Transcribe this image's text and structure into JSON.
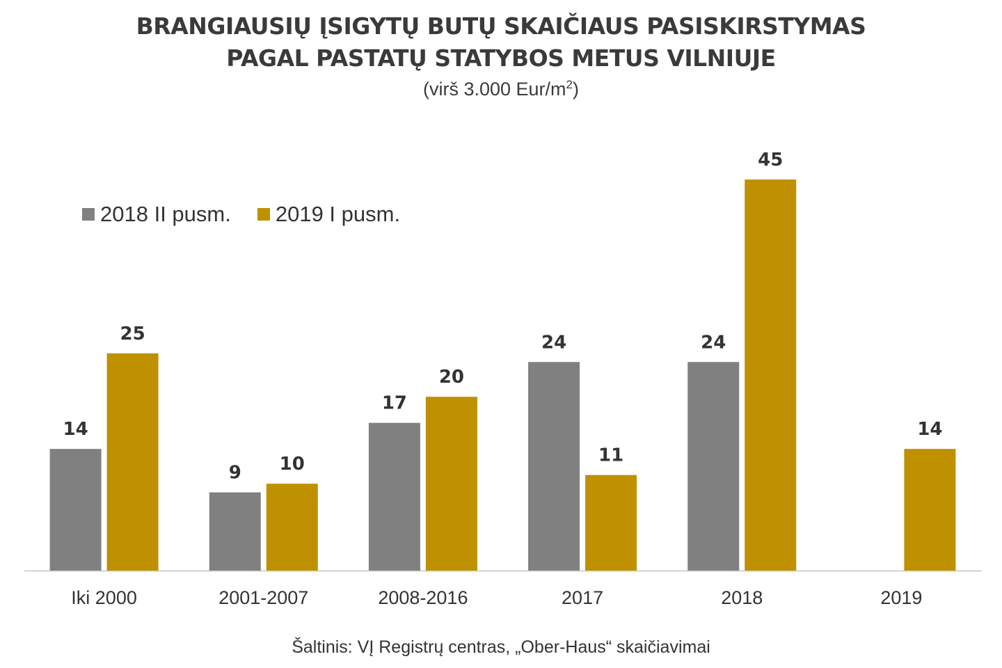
{
  "title_line1": "BRANGIAUSIŲ ĮSIGYTŲ BUTŲ SKAIČIAUS PASISKIRSTYMAS",
  "title_line2": "PAGAL PASTATŲ STATYBOS METUS VILNIUJE",
  "subtitle_prefix": "(virš 3.000 Eur/m",
  "subtitle_sup": "2",
  "subtitle_suffix": ")",
  "source": "Šaltinis: VĮ Registrų centras, „Ober-Haus“ skaičiavimai",
  "colors": {
    "series1": "#808080",
    "series2": "#BF9000",
    "axis": "#d0d0d0"
  },
  "chart_data": {
    "type": "bar",
    "title": "BRANGIAUSIŲ ĮSIGYTŲ BUTŲ SKAIČIAUS PASISKIRSTYMAS PAGAL PASTATŲ STATYBOS METUS VILNIUJE",
    "subtitle": "(virš 3.000 Eur/m2)",
    "categories": [
      "Iki 2000",
      "2001-2007",
      "2008-2016",
      "2017",
      "2018",
      "2019"
    ],
    "series": [
      {
        "name": "2018 II pusm.",
        "values": [
          14,
          9,
          17,
          24,
          24,
          null
        ]
      },
      {
        "name": "2019 I pusm.",
        "values": [
          25,
          10,
          20,
          11,
          45,
          14
        ]
      }
    ],
    "ylim": [
      0,
      45
    ],
    "grid": false,
    "legend": "top-left",
    "data_labels": true
  }
}
